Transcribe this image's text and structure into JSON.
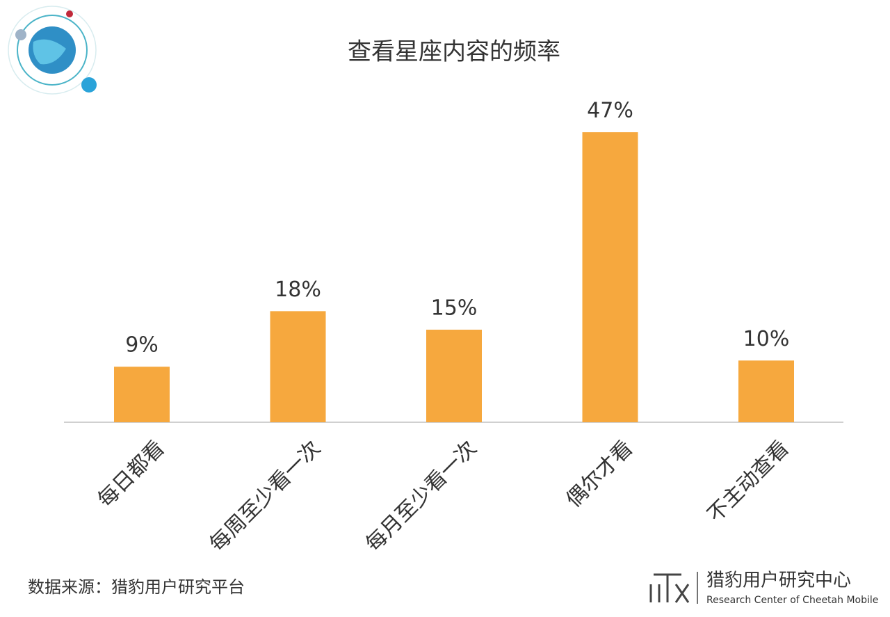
{
  "chart_data": {
    "type": "bar",
    "title": "查看星座内容的频率",
    "categories": [
      "每日都看",
      "每周至少看一次",
      "每月至少看一次",
      "偶尔才看",
      "不主动查看"
    ],
    "values": [
      9,
      18,
      15,
      47,
      10
    ],
    "value_labels": [
      "9%",
      "18%",
      "15%",
      "47%",
      "10%"
    ],
    "color": "#f6a83e"
  },
  "footer": {
    "source": "数据来源：猎豹用户研究平台",
    "brand": "猎豹用户研究中心",
    "brand_en": "Research Center of Cheetah Mobile"
  }
}
